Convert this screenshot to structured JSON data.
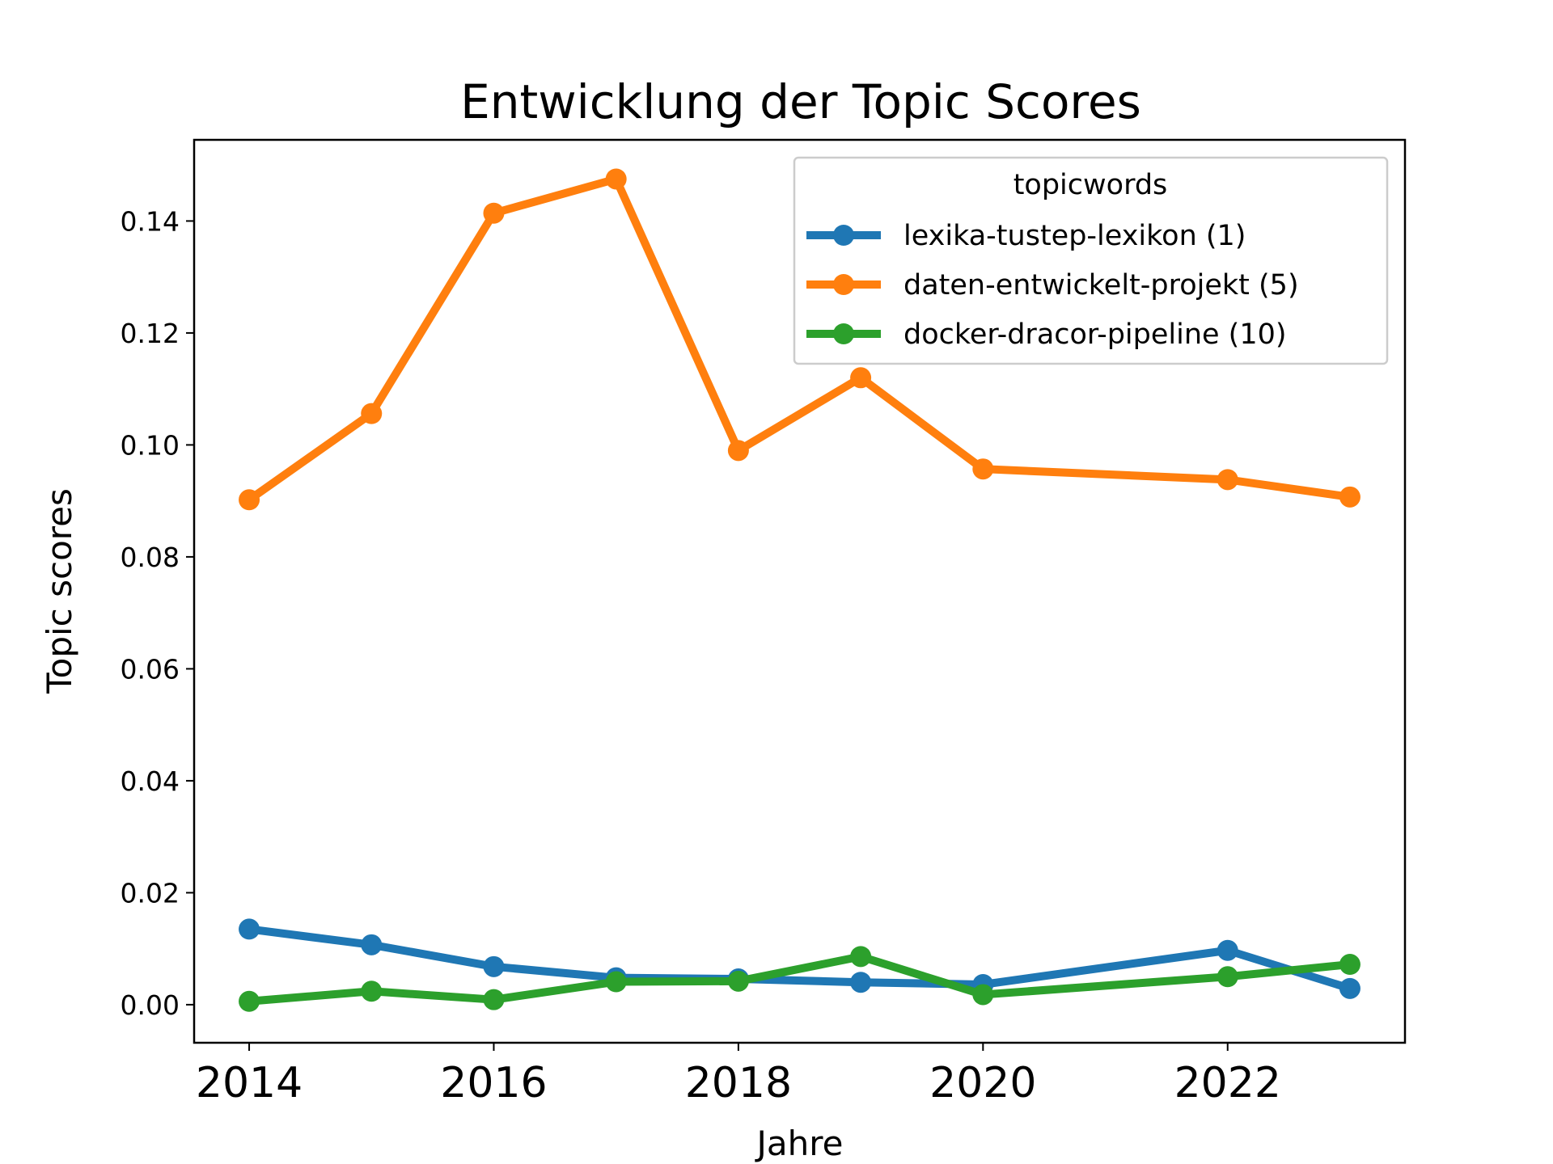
{
  "chart_data": {
    "type": "line",
    "title": "Entwicklung der Topic Scores",
    "xlabel": "Jahre",
    "ylabel": "Topic scores",
    "x": [
      2014,
      2015,
      2016,
      2017,
      2018,
      2019,
      2020,
      2022,
      2023
    ],
    "xlim": [
      2013.55,
      2023.45
    ],
    "ylim": [
      -0.0068,
      0.1545
    ],
    "xticks": [
      2014,
      2016,
      2018,
      2020,
      2022
    ],
    "xtick_labels": [
      "2014",
      "2016",
      "2018",
      "2020",
      "2022"
    ],
    "yticks": [
      0.0,
      0.02,
      0.04,
      0.06,
      0.08,
      0.1,
      0.12,
      0.14
    ],
    "ytick_labels": [
      "0.00",
      "0.02",
      "0.04",
      "0.06",
      "0.08",
      "0.10",
      "0.12",
      "0.14"
    ],
    "grid": false,
    "legend": {
      "title": "topicwords",
      "placement": "top-right"
    },
    "series": [
      {
        "name": "lexika-tustep-lexikon (1)",
        "color": "#1f77b4",
        "values": [
          0.0135,
          0.0107,
          0.0068,
          0.0048,
          0.0046,
          0.004,
          0.0036,
          0.0097,
          0.0029
        ]
      },
      {
        "name": "daten-entwickelt-projekt (5)",
        "color": "#ff7f0e",
        "values": [
          0.0902,
          0.1056,
          0.1414,
          0.1475,
          0.099,
          0.112,
          0.0957,
          0.0938,
          0.0907
        ]
      },
      {
        "name": "docker-dracor-pipeline (10)",
        "color": "#2ca02c",
        "values": [
          0.0006,
          0.0024,
          0.0009,
          0.0041,
          0.0042,
          0.0086,
          0.0018,
          0.005,
          0.0072
        ]
      }
    ]
  }
}
